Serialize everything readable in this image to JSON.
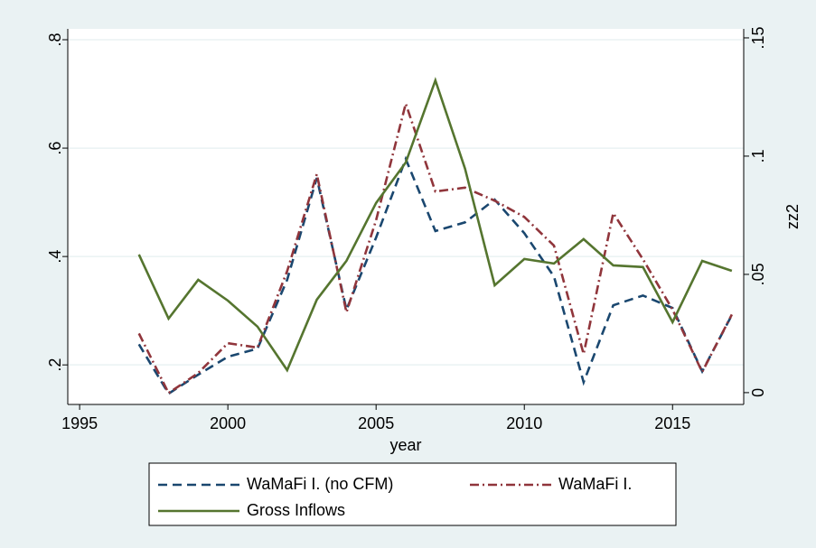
{
  "chart_data": {
    "type": "line",
    "x_label": "year",
    "y2_label": "zz2",
    "x": [
      1997,
      1998,
      1999,
      2000,
      2001,
      2002,
      2003,
      2004,
      2005,
      2006,
      2007,
      2008,
      2009,
      2010,
      2011,
      2012,
      2013,
      2014,
      2015,
      2016,
      2017
    ],
    "xlim": [
      1994.6,
      2017.4
    ],
    "xticks": [
      1995,
      2000,
      2005,
      2010,
      2015
    ],
    "ylim": [
      0.127,
      0.82
    ],
    "yticks": [
      {
        "value": 0.2,
        "label": ".2"
      },
      {
        "value": 0.4,
        "label": ".4"
      },
      {
        "value": 0.6,
        "label": ".6"
      },
      {
        "value": 0.8,
        "label": ".8"
      }
    ],
    "y2lim": [
      -0.005,
      0.1538
    ],
    "y2ticks": [
      0,
      {
        "value": 0.05,
        "label": ".05"
      },
      {
        "value": 0.1,
        "label": ".1"
      },
      {
        "value": 0.15,
        "label": ".15"
      }
    ],
    "grid": true,
    "series": [
      {
        "name": "WaMaFi I. (no CFM)",
        "color": "#1a476f",
        "dash": "dashed",
        "values": [
          0.238,
          0.147,
          0.182,
          0.215,
          0.23,
          0.357,
          0.545,
          0.302,
          0.435,
          0.58,
          0.447,
          0.463,
          0.505,
          0.443,
          0.363,
          0.168,
          0.31,
          0.328,
          0.305,
          0.188,
          0.292
        ]
      },
      {
        "name": "WaMaFi I.",
        "color": "#90353b",
        "dash": "dashdot",
        "values": [
          0.258,
          0.148,
          0.185,
          0.24,
          0.232,
          0.373,
          0.552,
          0.297,
          0.467,
          0.682,
          0.52,
          0.527,
          0.503,
          0.473,
          0.42,
          0.22,
          0.48,
          0.395,
          0.302,
          0.187,
          0.293
        ]
      },
      {
        "name": "Gross Inflows",
        "color": "#55752f",
        "dash": "solid",
        "axis": "y2",
        "values": [
          0.0584,
          0.0313,
          0.0477,
          0.0389,
          0.0279,
          0.0095,
          0.0393,
          0.0557,
          0.0802,
          0.0973,
          0.132,
          0.0947,
          0.0454,
          0.0565,
          0.0546,
          0.0649,
          0.0538,
          0.0531,
          0.0298,
          0.0557,
          0.0515
        ]
      }
    ]
  }
}
